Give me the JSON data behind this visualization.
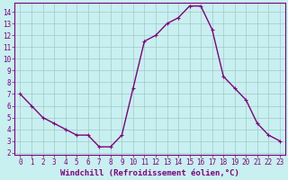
{
  "x": [
    0,
    1,
    2,
    3,
    4,
    5,
    6,
    7,
    8,
    9,
    10,
    11,
    12,
    13,
    14,
    15,
    16,
    17,
    18,
    19,
    20,
    21,
    22,
    23
  ],
  "y": [
    7.0,
    6.0,
    5.0,
    4.5,
    4.0,
    3.5,
    3.5,
    2.5,
    2.5,
    3.5,
    7.5,
    11.5,
    12.0,
    13.0,
    13.5,
    14.5,
    14.5,
    12.5,
    8.5,
    7.5,
    6.5,
    4.5,
    3.5,
    3.0
  ],
  "color": "#800080",
  "bg_color": "#c8f0f0",
  "grid_color": "#a0c8c8",
  "xlabel": "Windchill (Refroidissement éolien,°C)",
  "ylim_min": 1.8,
  "ylim_max": 14.8,
  "xlim_min": -0.5,
  "xlim_max": 23.5,
  "yticks": [
    2,
    3,
    4,
    5,
    6,
    7,
    8,
    9,
    10,
    11,
    12,
    13,
    14
  ],
  "xticks": [
    0,
    1,
    2,
    3,
    4,
    5,
    6,
    7,
    8,
    9,
    10,
    11,
    12,
    13,
    14,
    15,
    16,
    17,
    18,
    19,
    20,
    21,
    22,
    23
  ],
  "markersize": 2.5,
  "linewidth": 1.0,
  "xlabel_fontsize": 6.5,
  "tick_fontsize": 5.5
}
